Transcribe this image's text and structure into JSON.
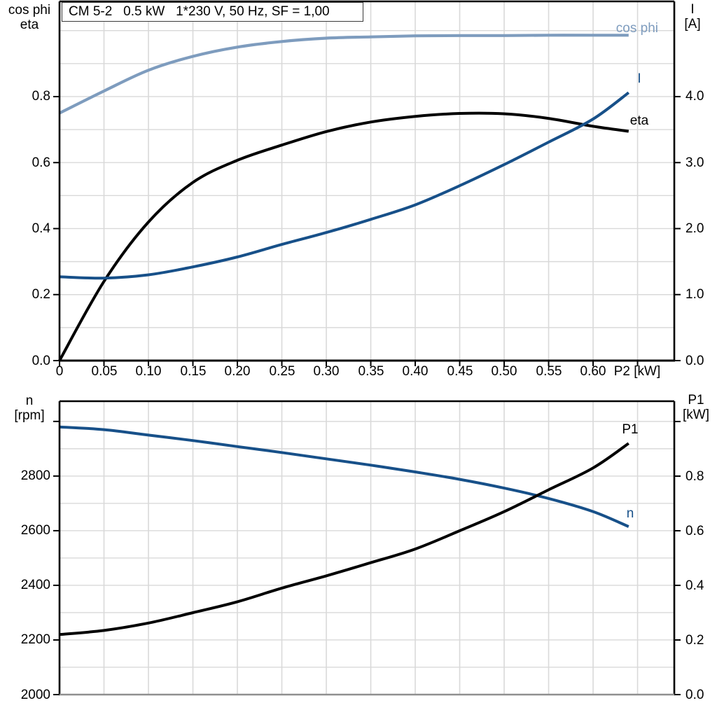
{
  "title_box": {
    "label": "CM 5-2   0.5 kW   1*230 V, 50 Hz, SF = 1,00"
  },
  "colors": {
    "dark_blue": "#175089",
    "light_blue": "#7e9cbe",
    "black": "#000000",
    "grid": "#d9d9d9",
    "border": "#000000",
    "bottom_border_gray": "#8f8f8f"
  },
  "top_panel": {
    "left_axis_title_line1": "cos phi",
    "left_axis_title_line2": "eta",
    "right_axis_title_line1": "I",
    "right_axis_title_line2": "[A]",
    "x_axis_unit_label": "P2 [kW]",
    "left_tick_labels": [
      "0.0",
      "0.2",
      "0.4",
      "0.6",
      "0.8"
    ],
    "right_tick_labels": [
      "0.0",
      "1.0",
      "2.0",
      "3.0",
      "4.0"
    ],
    "x_tick_labels": [
      "0",
      "0.05",
      "0.10",
      "0.15",
      "0.20",
      "0.25",
      "0.30",
      "0.35",
      "0.40",
      "0.45",
      "0.50",
      "0.55",
      "0.60"
    ],
    "curve_labels": {
      "cos_phi": "cos phi",
      "current": "I",
      "eta": "eta"
    }
  },
  "bottom_panel": {
    "left_axis_title_line1": "n",
    "left_axis_title_line2": "[rpm]",
    "right_axis_title_line1": "P1",
    "right_axis_title_line2": "[kW]",
    "left_tick_labels": [
      "2000",
      "2200",
      "2400",
      "2600",
      "2800"
    ],
    "right_tick_labels": [
      "0.0",
      "0.2",
      "0.4",
      "0.6",
      "0.8"
    ],
    "curve_labels": {
      "p1": "P1",
      "n": "n"
    }
  },
  "chart_data": [
    {
      "panel": "top",
      "type": "line",
      "title": "CM 5-2   0.5 kW   1*230 V, 50 Hz, SF = 1,00",
      "xlabel": "P2 [kW]",
      "x_range": [
        0,
        0.6913
      ],
      "x_grid_values": [
        0.05,
        0.1,
        0.15,
        0.2,
        0.25,
        0.3,
        0.35,
        0.4,
        0.45,
        0.5,
        0.55,
        0.6,
        0.65
      ],
      "x_tick_values": [
        0,
        0.05,
        0.1,
        0.15,
        0.2,
        0.25,
        0.3,
        0.35,
        0.4,
        0.45,
        0.5,
        0.55,
        0.6,
        0.65
      ],
      "left_axis": {
        "label": "cos phi / eta",
        "range": [
          0,
          1.0885
        ],
        "tick_values": [
          0,
          0.2,
          0.4,
          0.6,
          0.8
        ],
        "extra_ticks": [],
        "grid_values": [
          0.1,
          0.2,
          0.3,
          0.4,
          0.5,
          0.6,
          0.7,
          0.8,
          0.9,
          1.0
        ]
      },
      "right_axis": {
        "label": "I [A]",
        "range": [
          0,
          5.4425
        ],
        "tick_values": [
          0,
          1,
          2,
          3,
          4
        ],
        "extra_ticks": []
      },
      "x": [
        0,
        0.05,
        0.1,
        0.15,
        0.2,
        0.25,
        0.3,
        0.35,
        0.4,
        0.45,
        0.5,
        0.55,
        0.6,
        0.64
      ],
      "series": [
        {
          "name": "cos phi",
          "axis": "left",
          "color_key": "light_blue",
          "width": 4.2,
          "values": [
            0.75,
            0.817,
            0.88,
            0.922,
            0.95,
            0.967,
            0.977,
            0.981,
            0.984,
            0.985,
            0.985,
            0.986,
            0.986,
            0.986
          ]
        },
        {
          "name": "eta",
          "axis": "left",
          "color_key": "black",
          "width": 4,
          "values": [
            0.0,
            0.24,
            0.42,
            0.54,
            0.607,
            0.653,
            0.694,
            0.723,
            0.74,
            0.749,
            0.748,
            0.734,
            0.71,
            0.695
          ]
        },
        {
          "name": "I",
          "axis": "right",
          "color_key": "dark_blue",
          "width": 4,
          "values": [
            1.27,
            1.25,
            1.3,
            1.42,
            1.57,
            1.76,
            1.94,
            2.14,
            2.36,
            2.65,
            2.97,
            3.31,
            3.66,
            4.06
          ]
        }
      ]
    },
    {
      "panel": "bottom",
      "type": "line",
      "xlabel": "P2 [kW]",
      "x_range": [
        0,
        0.6913
      ],
      "x_grid_values": [
        0.05,
        0.1,
        0.15,
        0.2,
        0.25,
        0.3,
        0.35,
        0.4,
        0.45,
        0.5,
        0.55,
        0.6,
        0.65
      ],
      "x_tick_values": [],
      "left_axis": {
        "label": "n [rpm]",
        "range": [
          2000,
          3074
        ],
        "tick_values": [
          2000,
          2200,
          2400,
          2600,
          2800
        ],
        "extra_ticks": [
          3000
        ],
        "grid_values": [
          2100,
          2200,
          2300,
          2400,
          2500,
          2600,
          2700,
          2800,
          2900,
          3000
        ]
      },
      "right_axis": {
        "label": "P1 [kW]",
        "range": [
          0,
          1.0744
        ],
        "tick_values": [
          0,
          0.2,
          0.4,
          0.6,
          0.8
        ],
        "extra_ticks": [
          1.0
        ]
      },
      "x": [
        0,
        0.05,
        0.1,
        0.15,
        0.2,
        0.25,
        0.3,
        0.35,
        0.4,
        0.45,
        0.5,
        0.55,
        0.6,
        0.64
      ],
      "series": [
        {
          "name": "n",
          "axis": "left",
          "color_key": "dark_blue",
          "width": 4,
          "values": [
            2980,
            2970,
            2950,
            2930,
            2908,
            2886,
            2863,
            2840,
            2815,
            2788,
            2756,
            2718,
            2670,
            2615
          ]
        },
        {
          "name": "P1",
          "axis": "right",
          "color_key": "black",
          "width": 4,
          "values": [
            0.22,
            0.235,
            0.262,
            0.3,
            0.34,
            0.39,
            0.435,
            0.483,
            0.533,
            0.6,
            0.67,
            0.75,
            0.83,
            0.92
          ]
        }
      ]
    }
  ]
}
